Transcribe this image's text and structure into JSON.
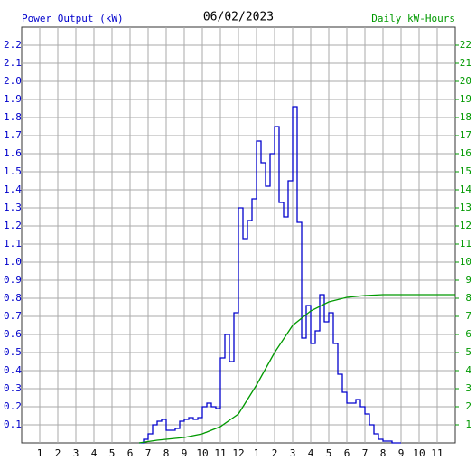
{
  "chart_data": {
    "type": "line",
    "title": "06/02/2023",
    "ylabel": "Power Output (kW)",
    "y2label": "Daily kW-Hours",
    "xlim": [
      0,
      24
    ],
    "xticks": [
      1,
      2,
      3,
      4,
      5,
      6,
      7,
      8,
      9,
      10,
      11,
      12,
      {
        "value": 13,
        "label": "1"
      },
      {
        "value": 14,
        "label": "2"
      },
      {
        "value": 15,
        "label": "3"
      },
      {
        "value": 16,
        "label": "4"
      },
      {
        "value": 17,
        "label": "5"
      },
      {
        "value": 18,
        "label": "6"
      },
      {
        "value": 19,
        "label": "7"
      },
      {
        "value": 20,
        "label": "8"
      },
      {
        "value": 21,
        "label": "9"
      },
      {
        "value": 22,
        "label": "10"
      },
      {
        "value": 23,
        "label": "11"
      }
    ],
    "ylim": [
      0,
      2.3
    ],
    "yticks": [
      0.1,
      0.2,
      0.3,
      0.4,
      0.5,
      0.6,
      0.7,
      0.8,
      0.9,
      {
        "value": 1,
        "label": "1.0"
      },
      1.1,
      1.2,
      1.3,
      1.4,
      1.5,
      1.6,
      1.7,
      1.8,
      1.9,
      {
        "value": 2,
        "label": "2.0"
      },
      2.1,
      2.2
    ],
    "y2lim": [
      0,
      23
    ],
    "y2ticks": [
      1,
      2,
      3,
      4,
      5,
      6,
      7,
      8,
      9,
      10,
      11,
      12,
      13,
      14,
      15,
      16,
      17,
      18,
      19,
      20,
      21,
      22
    ],
    "grid": true,
    "series": [
      {
        "color": "#0000cc",
        "step": true,
        "x": [
          6.5,
          6.75,
          7,
          7.25,
          7.5,
          7.75,
          8,
          8.5,
          8.75,
          9,
          9.25,
          9.5,
          9.75,
          10,
          10.25,
          10.5,
          10.75,
          11,
          11.25,
          11.5,
          11.75,
          12,
          12.25,
          12.5,
          12.75,
          13,
          13.25,
          13.5,
          13.75,
          14,
          14.25,
          14.5,
          14.75,
          15,
          15.25,
          15.5,
          15.75,
          16,
          16.25,
          16.5,
          16.75,
          17,
          17.25,
          17.5,
          17.75,
          18,
          18.25,
          18.5,
          18.75,
          19,
          19.25,
          19.5,
          19.75,
          20,
          20.5,
          21
        ],
        "values": [
          0,
          0.02,
          0.05,
          0.1,
          0.12,
          0.13,
          0.07,
          0.08,
          0.12,
          0.13,
          0.14,
          0.13,
          0.14,
          0.2,
          0.22,
          0.2,
          0.19,
          0.47,
          0.6,
          0.45,
          0.72,
          1.3,
          1.13,
          1.23,
          1.35,
          1.67,
          1.55,
          1.42,
          1.6,
          1.75,
          1.33,
          1.25,
          1.45,
          1.86,
          1.22,
          0.58,
          0.76,
          0.55,
          0.62,
          0.82,
          0.67,
          0.72,
          0.55,
          0.38,
          0.28,
          0.22,
          0.22,
          0.24,
          0.2,
          0.16,
          0.1,
          0.05,
          0.02,
          0.01,
          0,
          0
        ]
      },
      {
        "color": "#009900",
        "axis": "y2",
        "x": [
          6.5,
          7.5,
          9,
          10,
          11,
          12,
          13,
          14,
          15,
          16,
          17,
          18,
          19,
          20,
          24
        ],
        "values": [
          0,
          0.15,
          0.3,
          0.5,
          0.9,
          1.6,
          3.2,
          5,
          6.5,
          7.3,
          7.8,
          8.05,
          8.15,
          8.2,
          8.2
        ]
      }
    ]
  }
}
